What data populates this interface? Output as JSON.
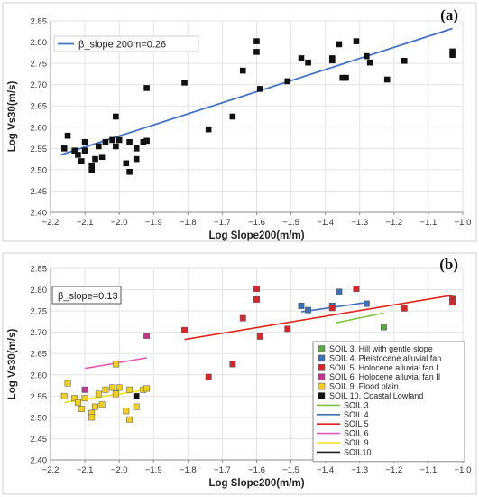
{
  "chart_data": [
    {
      "panel_label": "(a)",
      "type": "scatter",
      "xlabel": "Log Slope200(m/m)",
      "ylabel": "Log Vs30(m/s)",
      "xlim": [
        -2.2,
        -1.0
      ],
      "ylim": [
        2.4,
        2.85
      ],
      "x_ticks": [
        "-2.2",
        "-2.1",
        "-2.0",
        "-1.9",
        "-1.8",
        "-1.7",
        "-1.6",
        "-1.5",
        "-1.4",
        "-1.3",
        "-1.2",
        "-1.1",
        "-1.0"
      ],
      "y_ticks": [
        "2.40",
        "2.45",
        "2.50",
        "2.55",
        "2.60",
        "2.65",
        "2.70",
        "2.75",
        "2.80",
        "2.85"
      ],
      "legend": {
        "label": "β_slope 200m=0.26",
        "position": "top-left",
        "color": "#4472c4"
      },
      "fit_line": {
        "x": [
          -2.17,
          -1.03
        ],
        "y": [
          2.535,
          2.832
        ],
        "color": "#4472c4"
      },
      "points": [
        {
          "x": -2.16,
          "y": 2.55
        },
        {
          "x": -2.15,
          "y": 2.58
        },
        {
          "x": -2.13,
          "y": 2.545
        },
        {
          "x": -2.12,
          "y": 2.535
        },
        {
          "x": -2.11,
          "y": 2.52
        },
        {
          "x": -2.1,
          "y": 2.565
        },
        {
          "x": -2.1,
          "y": 2.545
        },
        {
          "x": -2.08,
          "y": 2.51
        },
        {
          "x": -2.08,
          "y": 2.5
        },
        {
          "x": -2.07,
          "y": 2.525
        },
        {
          "x": -2.06,
          "y": 2.555
        },
        {
          "x": -2.05,
          "y": 2.53
        },
        {
          "x": -2.04,
          "y": 2.565
        },
        {
          "x": -2.02,
          "y": 2.57
        },
        {
          "x": -2.01,
          "y": 2.555
        },
        {
          "x": -2.01,
          "y": 2.625
        },
        {
          "x": -2.0,
          "y": 2.57
        },
        {
          "x": -1.98,
          "y": 2.515
        },
        {
          "x": -1.97,
          "y": 2.495
        },
        {
          "x": -1.97,
          "y": 2.565
        },
        {
          "x": -1.95,
          "y": 2.55
        },
        {
          "x": -1.95,
          "y": 2.525
        },
        {
          "x": -1.93,
          "y": 2.565
        },
        {
          "x": -1.92,
          "y": 2.568
        },
        {
          "x": -1.92,
          "y": 2.692
        },
        {
          "x": -1.81,
          "y": 2.705
        },
        {
          "x": -1.74,
          "y": 2.595
        },
        {
          "x": -1.67,
          "y": 2.625
        },
        {
          "x": -1.64,
          "y": 2.733
        },
        {
          "x": -1.6,
          "y": 2.777
        },
        {
          "x": -1.6,
          "y": 2.802
        },
        {
          "x": -1.59,
          "y": 2.69
        },
        {
          "x": -1.51,
          "y": 2.708
        },
        {
          "x": -1.47,
          "y": 2.762
        },
        {
          "x": -1.45,
          "y": 2.752
        },
        {
          "x": -1.38,
          "y": 2.762
        },
        {
          "x": -1.38,
          "y": 2.757
        },
        {
          "x": -1.36,
          "y": 2.795
        },
        {
          "x": -1.35,
          "y": 2.716
        },
        {
          "x": -1.34,
          "y": 2.716
        },
        {
          "x": -1.31,
          "y": 2.802
        },
        {
          "x": -1.28,
          "y": 2.767
        },
        {
          "x": -1.27,
          "y": 2.752
        },
        {
          "x": -1.22,
          "y": 2.712
        },
        {
          "x": -1.17,
          "y": 2.756
        },
        {
          "x": -1.03,
          "y": 2.778
        },
        {
          "x": -1.03,
          "y": 2.77
        }
      ]
    },
    {
      "panel_label": "(b)",
      "type": "scatter",
      "xlabel": "Log Slope200(m/m)",
      "ylabel": "Log Vs30(m/s)",
      "xlim": [
        -2.2,
        -1.0
      ],
      "ylim": [
        2.4,
        2.85
      ],
      "x_ticks": [
        "-2.2",
        "-2.1",
        "-2.0",
        "-1.9",
        "-1.8",
        "-1.7",
        "-1.6",
        "-1.5",
        "-1.4",
        "-1.3",
        "-1.2",
        "-1.1",
        "-1.0"
      ],
      "y_ticks": [
        "2.40",
        "2.45",
        "2.50",
        "2.55",
        "2.60",
        "2.65",
        "2.70",
        "2.75",
        "2.80",
        "2.85"
      ],
      "slope_label": "β_slope=0.13",
      "legend_position": "bottom-right",
      "series": [
        {
          "name": "SOIL 3. Hill with gentle slope",
          "color": "#5aa843",
          "points": [
            {
              "x": -1.23,
              "y": 2.712
            }
          ]
        },
        {
          "name": "SOIL 4. Pleistocene alluvial fan",
          "color": "#3c6fb4",
          "points": [
            {
              "x": -1.47,
              "y": 2.762
            },
            {
              "x": -1.45,
              "y": 2.752
            },
            {
              "x": -1.38,
              "y": 2.762
            },
            {
              "x": -1.36,
              "y": 2.795
            },
            {
              "x": -1.28,
              "y": 2.767
            }
          ]
        },
        {
          "name": "SOIL 5. Holocene alluvial fan I",
          "color": "#d9262b",
          "points": [
            {
              "x": -1.81,
              "y": 2.705
            },
            {
              "x": -1.74,
              "y": 2.595
            },
            {
              "x": -1.67,
              "y": 2.625
            },
            {
              "x": -1.64,
              "y": 2.733
            },
            {
              "x": -1.6,
              "y": 2.777
            },
            {
              "x": -1.6,
              "y": 2.802
            },
            {
              "x": -1.59,
              "y": 2.69
            },
            {
              "x": -1.51,
              "y": 2.708
            },
            {
              "x": -1.38,
              "y": 2.757
            },
            {
              "x": -1.31,
              "y": 2.802
            },
            {
              "x": -1.17,
              "y": 2.756
            },
            {
              "x": -1.03,
              "y": 2.778
            },
            {
              "x": -1.03,
              "y": 2.77
            }
          ]
        },
        {
          "name": "SOIL 6. Holocene alluvial fan II",
          "color": "#c0378d",
          "points": [
            {
              "x": -2.1,
              "y": 2.565
            },
            {
              "x": -1.92,
              "y": 2.692
            }
          ]
        },
        {
          "name": "SOIL 9. Flood plain",
          "color": "#f0cf1e",
          "points": [
            {
              "x": -2.16,
              "y": 2.55
            },
            {
              "x": -2.15,
              "y": 2.58
            },
            {
              "x": -2.13,
              "y": 2.545
            },
            {
              "x": -2.12,
              "y": 2.535
            },
            {
              "x": -2.11,
              "y": 2.52
            },
            {
              "x": -2.1,
              "y": 2.545
            },
            {
              "x": -2.08,
              "y": 2.51
            },
            {
              "x": -2.08,
              "y": 2.5
            },
            {
              "x": -2.07,
              "y": 2.525
            },
            {
              "x": -2.06,
              "y": 2.555
            },
            {
              "x": -2.05,
              "y": 2.53
            },
            {
              "x": -2.04,
              "y": 2.565
            },
            {
              "x": -2.02,
              "y": 2.57
            },
            {
              "x": -2.01,
              "y": 2.555
            },
            {
              "x": -2.01,
              "y": 2.625
            },
            {
              "x": -2.0,
              "y": 2.57
            },
            {
              "x": -1.98,
              "y": 2.515
            },
            {
              "x": -1.97,
              "y": 2.495
            },
            {
              "x": -1.97,
              "y": 2.565
            },
            {
              "x": -1.95,
              "y": 2.525
            },
            {
              "x": -1.93,
              "y": 2.565
            },
            {
              "x": -1.92,
              "y": 2.568
            }
          ]
        },
        {
          "name": "SOIL 10. Coastal Lowland",
          "color": "#111111",
          "points": [
            {
              "x": -1.95,
              "y": 2.55
            }
          ]
        }
      ],
      "fit_lines": [
        {
          "name": "SOIL 3",
          "color": "#7fc241",
          "x": [
            -1.37,
            -1.23
          ],
          "y": [
            2.722,
            2.745
          ]
        },
        {
          "name": "SOIL 4",
          "color": "#3c6fb4",
          "x": [
            -1.47,
            -1.28
          ],
          "y": [
            2.748,
            2.77
          ]
        },
        {
          "name": "SOIL 5",
          "color": "#e3241b",
          "x": [
            -1.81,
            -1.03
          ],
          "y": [
            2.683,
            2.787
          ]
        },
        {
          "name": "SOIL 6",
          "color": "#e15bb7",
          "x": [
            -2.1,
            -1.92
          ],
          "y": [
            2.615,
            2.64
          ]
        },
        {
          "name": "SOIL 9",
          "color": "#f2e21c",
          "x": [
            -2.16,
            -1.92
          ],
          "y": [
            2.535,
            2.565
          ]
        },
        {
          "name": "SOIL10",
          "color": "#222222",
          "x": [],
          "y": []
        }
      ]
    }
  ]
}
